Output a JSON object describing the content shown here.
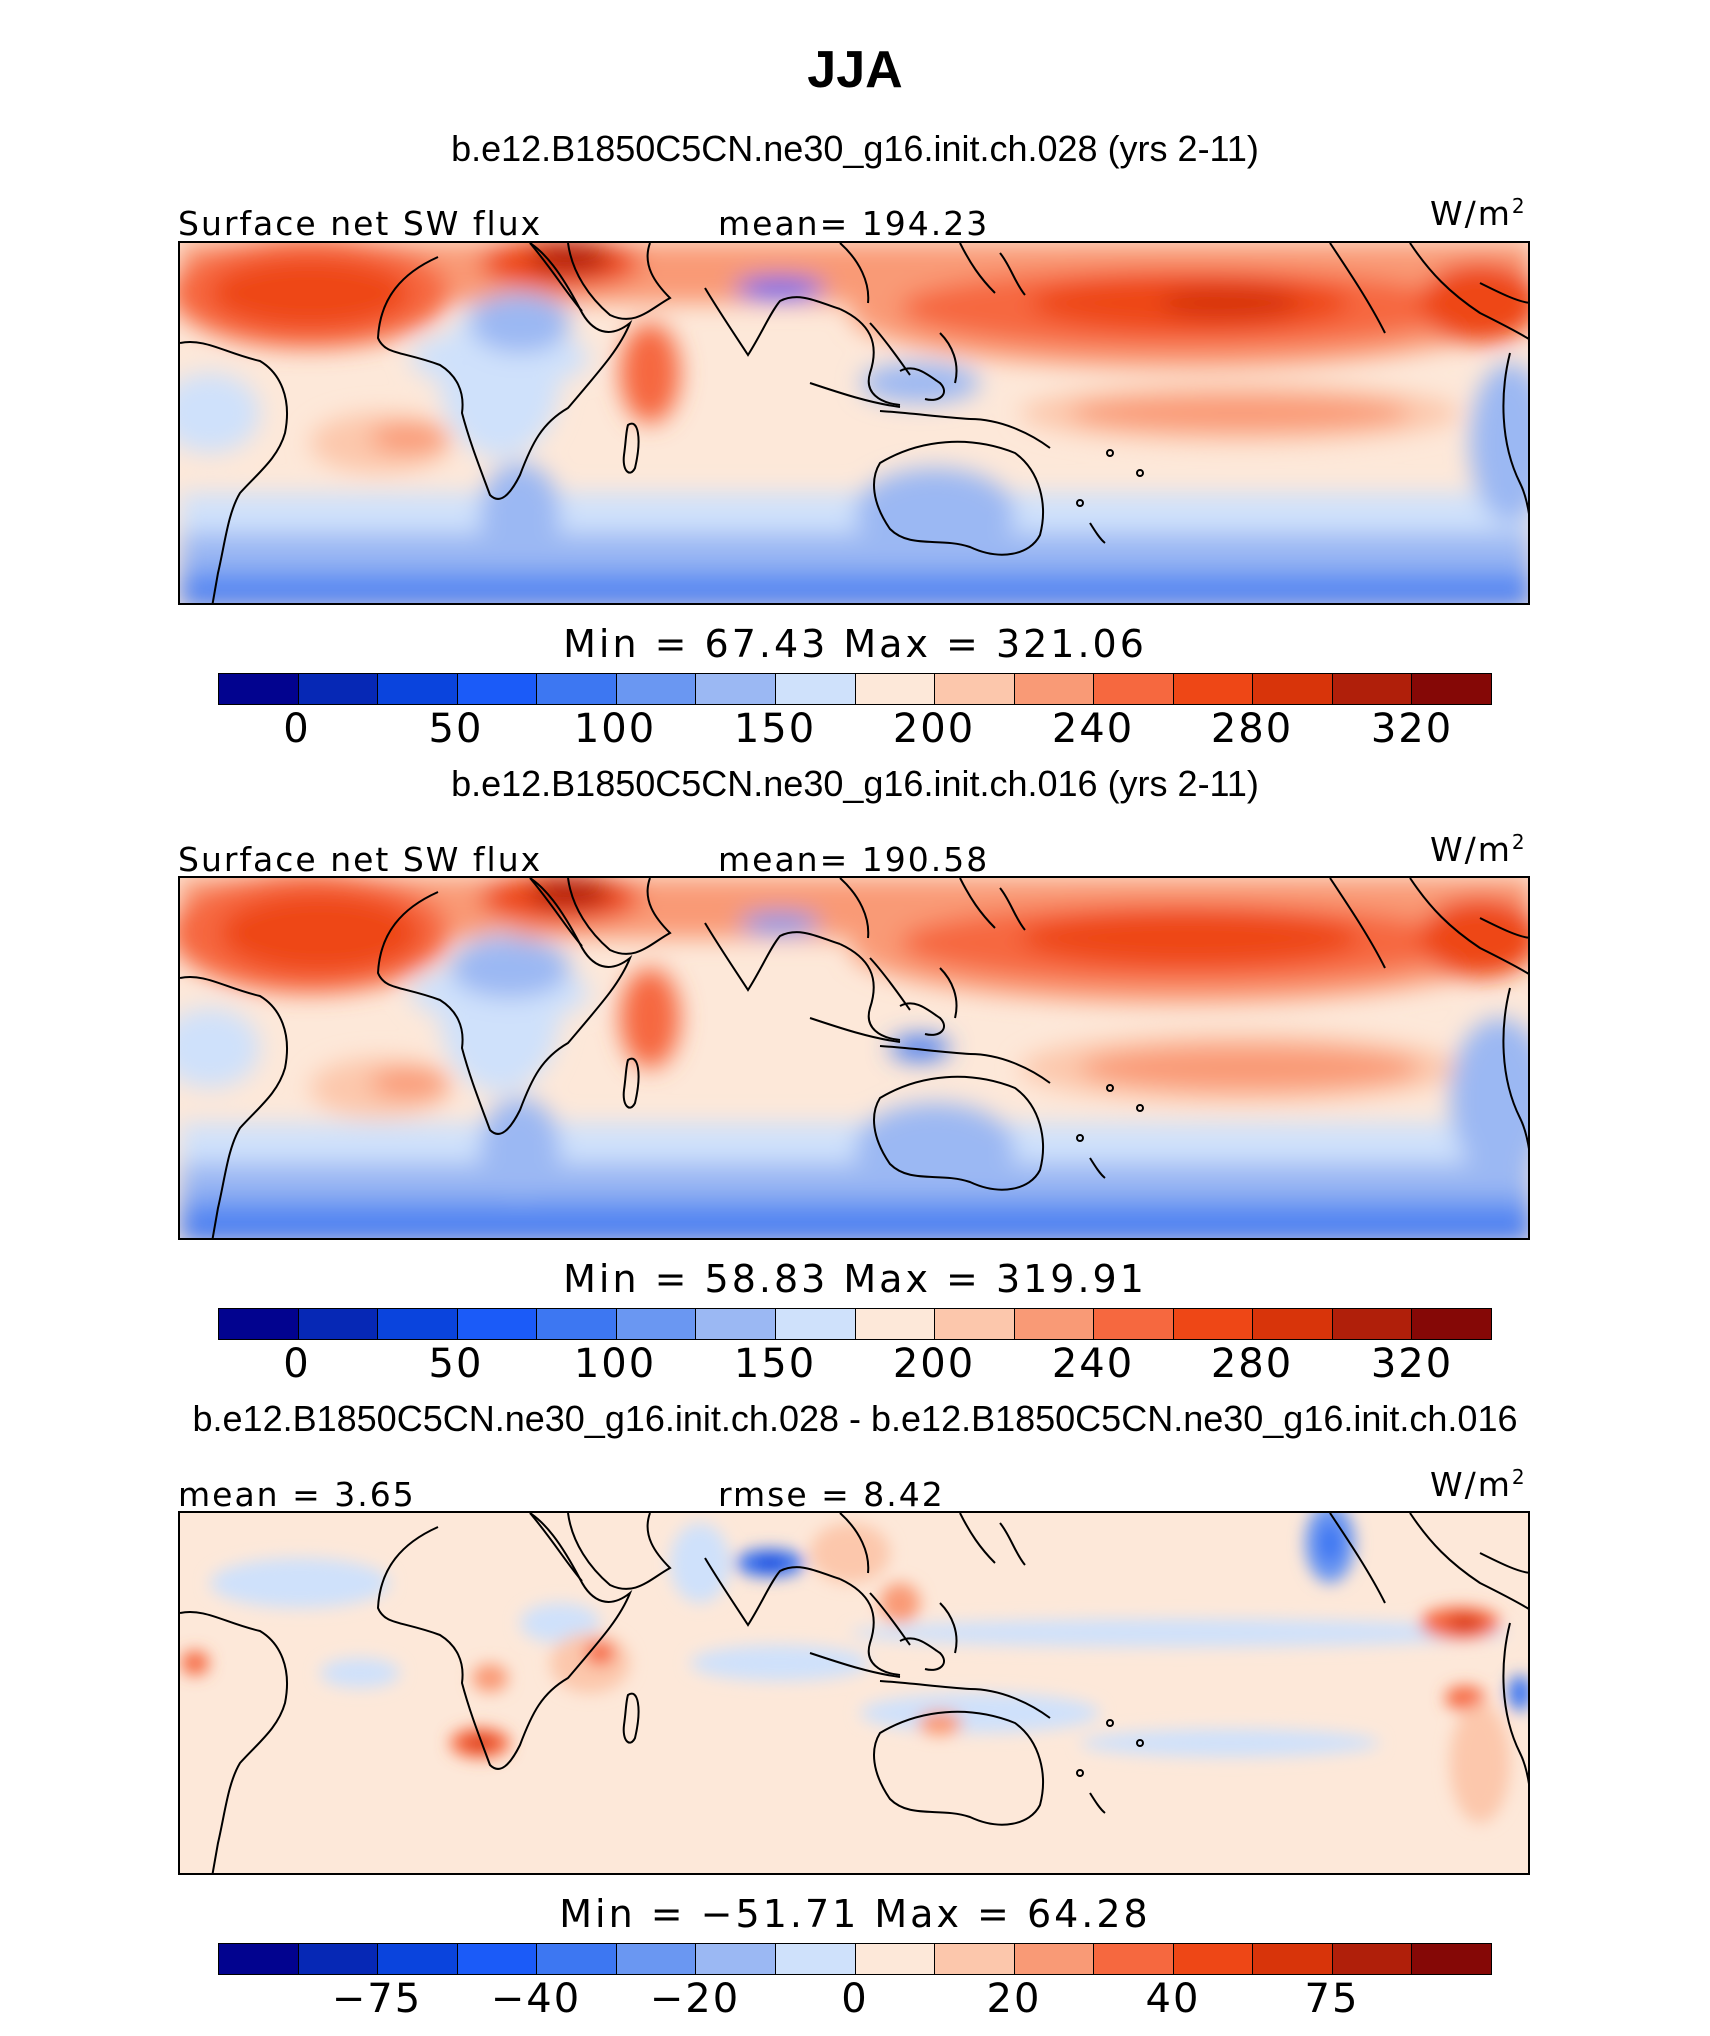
{
  "title": "JJA",
  "colors": {
    "abs": [
      "#02038f",
      "#0628b5",
      "#0a44dd",
      "#1b5bf8",
      "#3d77f2",
      "#6a97f2",
      "#9bb8f3",
      "#cfe1fb",
      "#fde8d9",
      "#fcc7ac",
      "#f99a76",
      "#f6683f",
      "#ee4716",
      "#d8340a",
      "#b01f0a",
      "#850806"
    ]
  },
  "panels": [
    {
      "case": "b.e12.B1850C5CN.ne30_g16.init.ch.028 (yrs 2-11)",
      "left_label": "Surface net SW flux",
      "center_label": "mean= 194.23",
      "units": "W/m",
      "units_sup": "2",
      "minmax": "Min  =   67.43  Max  =  321.06",
      "ticks": [
        "0",
        "50",
        "100",
        "150",
        "200",
        "240",
        "280",
        "320"
      ]
    },
    {
      "case": "b.e12.B1850C5CN.ne30_g16.init.ch.016 (yrs 2-11)",
      "left_label": "Surface net SW flux",
      "center_label": "mean= 190.58",
      "units": "W/m",
      "units_sup": "2",
      "minmax": "Min  =   58.83  Max  =  319.91",
      "ticks": [
        "0",
        "50",
        "100",
        "150",
        "200",
        "240",
        "280",
        "320"
      ]
    },
    {
      "case": "b.e12.B1850C5CN.ne30_g16.init.ch.028 - b.e12.B1850C5CN.ne30_g16.init.ch.016",
      "left_label": "mean  =    3.65",
      "center_label": "rmse  =    8.42",
      "units": "W/m",
      "units_sup": "2",
      "minmax": "Min  =  −51.71  Max  =   64.28",
      "ticks": [
        "−75",
        "−40",
        "−20",
        "0",
        "20",
        "40",
        "75"
      ]
    }
  ]
}
